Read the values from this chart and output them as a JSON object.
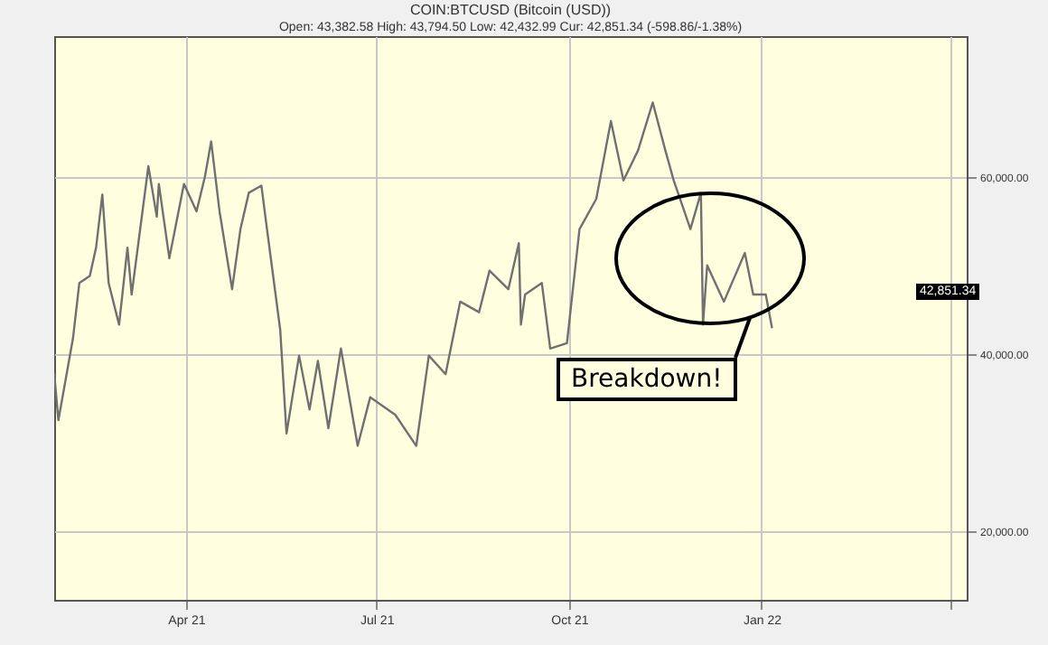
{
  "chart_data": {
    "type": "line",
    "title": "COIN:BTCUSD (Bitcoin (USD))",
    "subtitle": "Open: 43,382.58 High: 43,794.50 Low: 42,432.99 Cur: 42,851.34 (-598.86/-1.38%)",
    "x": [
      "2021-01-28",
      "2021-01-30",
      "2021-02-03",
      "2021-02-06",
      "2021-02-09",
      "2021-02-14",
      "2021-02-17",
      "2021-02-20",
      "2021-02-23",
      "2021-02-28",
      "2021-03-04",
      "2021-03-06",
      "2021-03-14",
      "2021-03-18",
      "2021-03-19",
      "2021-03-24",
      "2021-03-31",
      "2021-04-06",
      "2021-04-10",
      "2021-04-13",
      "2021-04-17",
      "2021-04-23",
      "2021-04-27",
      "2021-05-01",
      "2021-05-07",
      "2021-05-10",
      "2021-05-16",
      "2021-05-19",
      "2021-05-25",
      "2021-05-30",
      "2021-06-03",
      "2021-06-08",
      "2021-06-14",
      "2021-06-22",
      "2021-06-28",
      "2021-07-10",
      "2021-07-20",
      "2021-07-26",
      "2021-08-03",
      "2021-08-10",
      "2021-08-19",
      "2021-08-24",
      "2021-09-02",
      "2021-09-07",
      "2021-09-08",
      "2021-09-10",
      "2021-09-18",
      "2021-09-22",
      "2021-09-30",
      "2021-10-06",
      "2021-10-14",
      "2021-10-21",
      "2021-10-27",
      "2021-11-03",
      "2021-11-10",
      "2021-11-16",
      "2021-11-20",
      "2021-11-28",
      "2021-12-03",
      "2021-12-04",
      "2021-12-06",
      "2021-12-14",
      "2021-12-24",
      "2021-12-28",
      "2022-01-03",
      "2022-01-06"
    ],
    "series": [
      {
        "color": "#707070",
        "values": [
          37800,
          32500,
          37800,
          41800,
          48000,
          48800,
          52000,
          58000,
          48000,
          43300,
          52000,
          46700,
          61200,
          55500,
          59200,
          50800,
          59200,
          56100,
          60000,
          64000,
          56100,
          47300,
          54100,
          58200,
          59000,
          53500,
          42700,
          31000,
          39800,
          33700,
          39200,
          31600,
          40600,
          29600,
          35100,
          33100,
          29600,
          39800,
          37700,
          45900,
          44700,
          49400,
          47300,
          52500,
          43300,
          46700,
          48000,
          40600,
          41200,
          54100,
          57500,
          66300,
          59600,
          63000,
          68400,
          63000,
          59600,
          54100,
          58200,
          43300,
          50000,
          45900,
          51400,
          46700,
          46700,
          42900
        ]
      }
    ],
    "xlim": [
      "2021-01-28",
      "2022-04-09"
    ],
    "xticks": [
      {
        "value": "2021-04-01",
        "label": "Apr 21"
      },
      {
        "value": "2021-07-01",
        "label": "Jul 21"
      },
      {
        "value": "2021-10-01",
        "label": "Oct 21"
      },
      {
        "value": "2022-01-01",
        "label": "Jan 22"
      },
      {
        "value": "2022-04-01",
        "label": null
      }
    ],
    "ylim": [
      12200,
      75900
    ],
    "yticks": [
      {
        "value": 20000,
        "label": "20,000.00"
      },
      {
        "value": 40000,
        "label": "40,000.00"
      },
      {
        "value": 60000,
        "label": "60,000.00"
      }
    ],
    "grid": true,
    "annotations": [
      "Breakdown!",
      "42,851.34"
    ]
  }
}
